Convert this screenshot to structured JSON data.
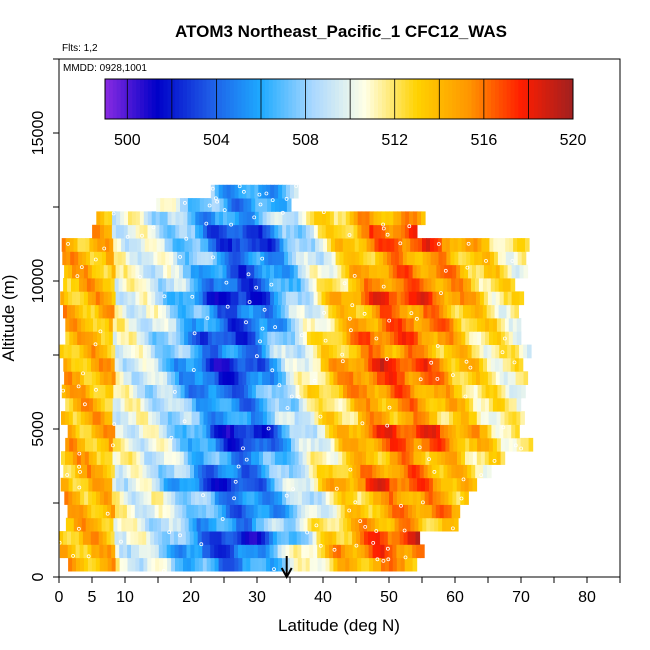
{
  "chart_data": {
    "type": "heatmap",
    "title": "ATOM3 Northeast_Pacific_1 CFC12_WAS",
    "subtitle_flights": "Flts: 1,2",
    "subtitle_dates": "MMDD: 0928,1001",
    "xlabel": "Latitude (deg N)",
    "ylabel": "Altitude (m)",
    "xlim": [
      0,
      85
    ],
    "ylim": [
      0,
      17500
    ],
    "x_ticks": [
      0,
      5,
      10,
      20,
      30,
      40,
      50,
      60,
      70,
      80
    ],
    "y_ticks": [
      0,
      5000,
      10000,
      15000
    ],
    "colorbar": {
      "min": 499,
      "max": 520,
      "tick_values": [
        500,
        504,
        508,
        512,
        516,
        520
      ],
      "colors": [
        "#8a2be2",
        "#0000c8",
        "#1e5ae6",
        "#1eaaff",
        "#aad8ff",
        "#ffffe6",
        "#ffd200",
        "#ff9600",
        "#ff1e00",
        "#a02020"
      ]
    },
    "marker": {
      "type": "arrow",
      "latitude": 34.5
    },
    "data_extent": {
      "lat_min": 0,
      "lat_max": 71.5,
      "alt_min": 200,
      "alt_max": 12900
    },
    "trend": {
      "description_values": "CFC12 mixing ratio (ppt) interpolated along altitude bands; low values (~502) around 20-35 deg N mid-altitudes, high values (~514-518) north of 45 deg N",
      "low_center_lat": 27,
      "high_center_lat": 52
    }
  }
}
